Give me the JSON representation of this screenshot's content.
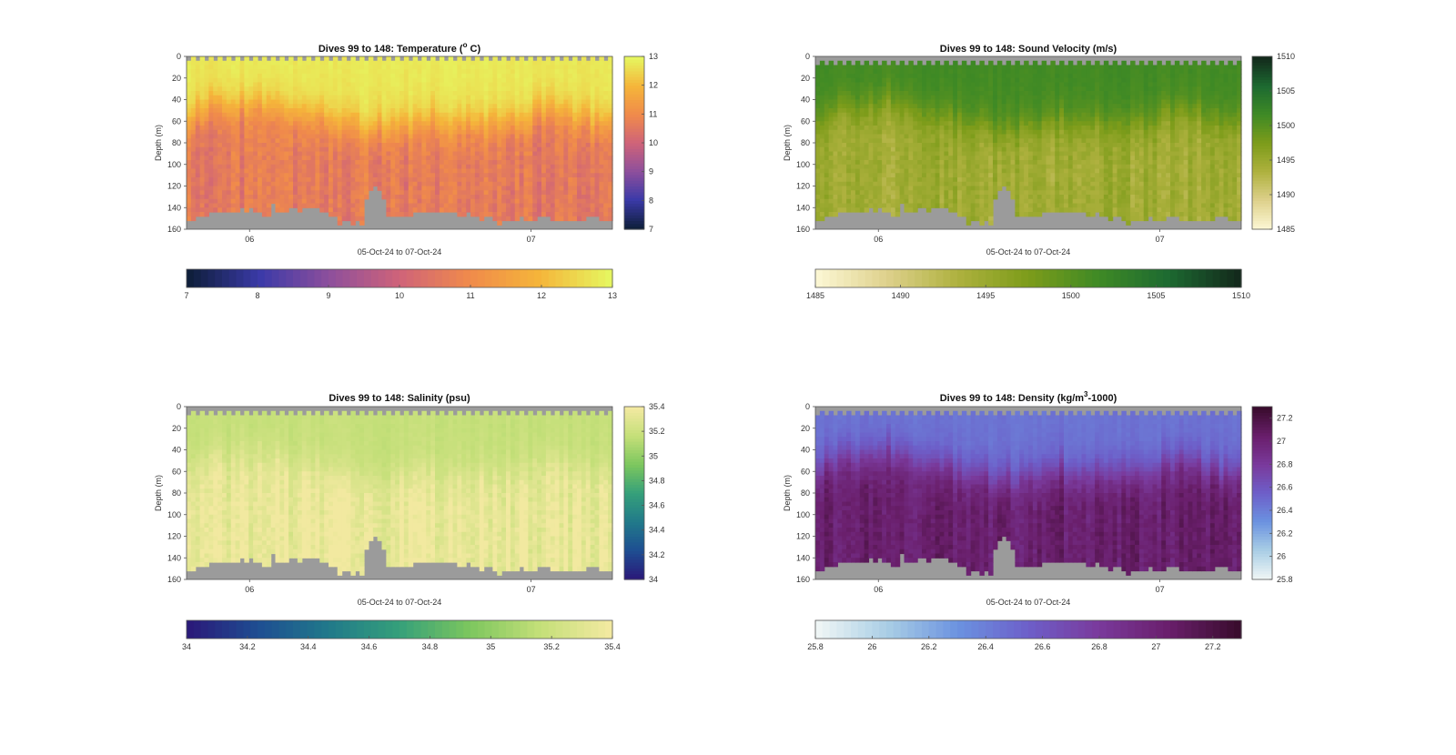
{
  "chart_data": [
    {
      "type": "heatmap",
      "title": "Dives 99 to 148: Temperature (",
      "title_sup": "o",
      "title_end": " C)",
      "xlabel": "05-Oct-24 to 07-Oct-24",
      "ylabel": "Depth (m)",
      "x_ticks": [
        "06",
        "07"
      ],
      "y_ticks": [
        0,
        20,
        40,
        60,
        80,
        100,
        120,
        140,
        160
      ],
      "ylim": [
        0,
        160
      ],
      "colormap": [
        "#0f1f3c",
        "#3b3aa8",
        "#8e4f9c",
        "#cf6379",
        "#f08a4b",
        "#f5b53a",
        "#e6f55f"
      ],
      "no_data_color": "#9b9b9b",
      "clim": [
        7,
        13
      ],
      "side_colorbar_ticks": [
        7,
        8,
        9,
        10,
        11,
        12,
        13
      ],
      "bottom_colorbar_ticks": [
        7,
        8,
        9,
        10,
        11,
        12,
        13
      ],
      "profile_pattern": "warm-surface",
      "surface_value": 12.8,
      "deep_value": 10.6
    },
    {
      "type": "heatmap",
      "title": "Dives 99 to 148: Sound Velocity (m/s)",
      "xlabel": "05-Oct-24 to 07-Oct-24",
      "ylabel": "Depth (m)",
      "x_ticks": [
        "06",
        "07"
      ],
      "y_ticks": [
        0,
        20,
        40,
        60,
        80,
        100,
        120,
        140,
        160
      ],
      "ylim": [
        0,
        160
      ],
      "colormap": [
        "#fbf6d2",
        "#ddd08a",
        "#aeb13e",
        "#7d9c1a",
        "#3f8a25",
        "#1d6a31",
        "#132a1c"
      ],
      "no_data_color": "#9b9b9b",
      "clim": [
        1485,
        1510
      ],
      "side_colorbar_ticks": [
        1485,
        1490,
        1495,
        1500,
        1505,
        1510
      ],
      "bottom_colorbar_ticks": [
        1485,
        1490,
        1495,
        1500,
        1505,
        1510
      ],
      "profile_pattern": "warm-surface",
      "surface_value": 1501.5,
      "deep_value": 1494.5
    },
    {
      "type": "heatmap",
      "title": "Dives 99 to 148: Salinity (psu)",
      "xlabel": "05-Oct-24 to 07-Oct-24",
      "ylabel": "Depth (m)",
      "x_ticks": [
        "06",
        "07"
      ],
      "y_ticks": [
        0,
        20,
        40,
        60,
        80,
        100,
        120,
        140,
        160
      ],
      "ylim": [
        0,
        160
      ],
      "colormap": [
        "#2a1a7a",
        "#1e4f92",
        "#217a8a",
        "#35a07a",
        "#7cc65e",
        "#c3df78",
        "#f2e9a0"
      ],
      "no_data_color": "#9b9b9b",
      "clim": [
        34,
        35.4
      ],
      "side_colorbar_ticks": [
        34,
        34.2,
        34.4,
        34.6,
        34.8,
        35,
        35.2,
        35.4
      ],
      "bottom_colorbar_ticks": [
        34,
        34.2,
        34.4,
        34.6,
        34.8,
        35,
        35.2,
        35.4
      ],
      "profile_pattern": "fresh-surface",
      "surface_value": 35.18,
      "deep_value": 35.36
    },
    {
      "type": "heatmap",
      "title": "Dives 99 to 148: Density (kg/m",
      "title_sup": "3",
      "title_end": "-1000)",
      "xlabel": "05-Oct-24 to 07-Oct-24",
      "ylabel": "Depth (m)",
      "x_ticks": [
        "06",
        "07"
      ],
      "y_ticks": [
        0,
        20,
        40,
        60,
        80,
        100,
        120,
        140,
        160
      ],
      "ylim": [
        0,
        160
      ],
      "colormap": [
        "#eef5f5",
        "#a8cde5",
        "#6b92e0",
        "#6d5fc9",
        "#7a3a9c",
        "#6a1f6c",
        "#3a0c2e"
      ],
      "no_data_color": "#9b9b9b",
      "clim": [
        25.8,
        27.3
      ],
      "side_colorbar_ticks": [
        25.8,
        26,
        26.2,
        26.4,
        26.6,
        26.8,
        27,
        27.2
      ],
      "bottom_colorbar_ticks": [
        25.8,
        26,
        26.2,
        26.4,
        26.6,
        26.8,
        27,
        27.2
      ],
      "profile_pattern": "light-surface",
      "surface_value": 26.45,
      "deep_value": 27.05
    }
  ]
}
